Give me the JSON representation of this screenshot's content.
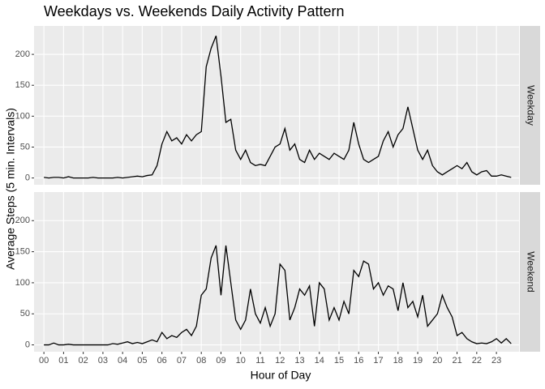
{
  "chart_data": {
    "type": "line",
    "title": "Weekdays vs. Weekends Daily Activity Pattern",
    "xlabel": "Hour of Day",
    "ylabel": "Average Steps (5 min. Intervals)",
    "x": [
      0,
      0.25,
      0.5,
      0.75,
      1,
      1.25,
      1.5,
      1.75,
      2,
      2.25,
      2.5,
      2.75,
      3,
      3.25,
      3.5,
      3.75,
      4,
      4.25,
      4.5,
      4.75,
      5,
      5.25,
      5.5,
      5.75,
      6,
      6.25,
      6.5,
      6.75,
      7,
      7.25,
      7.5,
      7.75,
      8,
      8.25,
      8.5,
      8.75,
      9,
      9.25,
      9.5,
      9.75,
      10,
      10.25,
      10.5,
      10.75,
      11,
      11.25,
      11.5,
      11.75,
      12,
      12.25,
      12.5,
      12.75,
      13,
      13.25,
      13.5,
      13.75,
      14,
      14.25,
      14.5,
      14.75,
      15,
      15.25,
      15.5,
      15.75,
      16,
      16.25,
      16.5,
      16.75,
      17,
      17.25,
      17.5,
      17.75,
      18,
      18.25,
      18.5,
      18.75,
      19,
      19.25,
      19.5,
      19.75,
      20,
      20.25,
      20.5,
      20.75,
      21,
      21.25,
      21.5,
      21.75,
      22,
      22.25,
      22.5,
      22.75,
      23,
      23.25,
      23.5,
      23.75
    ],
    "xlim": [
      -0.5,
      24.15
    ],
    "xticks": [
      {
        "value": 0,
        "label": "00"
      },
      {
        "value": 1,
        "label": "01"
      },
      {
        "value": 2,
        "label": "02"
      },
      {
        "value": 3,
        "label": "03"
      },
      {
        "value": 4,
        "label": "04"
      },
      {
        "value": 5,
        "label": "05"
      },
      {
        "value": 6,
        "label": "06"
      },
      {
        "value": 7,
        "label": "07"
      },
      {
        "value": 8,
        "label": "08"
      },
      {
        "value": 9,
        "label": "09"
      },
      {
        "value": 10,
        "label": "10"
      },
      {
        "value": 11,
        "label": "11"
      },
      {
        "value": 12,
        "label": "12"
      },
      {
        "value": 13,
        "label": "13"
      },
      {
        "value": 14,
        "label": "14"
      },
      {
        "value": 15,
        "label": "15"
      },
      {
        "value": 16,
        "label": "16"
      },
      {
        "value": 17,
        "label": "17"
      },
      {
        "value": 18,
        "label": "18"
      },
      {
        "value": 19,
        "label": "19"
      },
      {
        "value": 20,
        "label": "20"
      },
      {
        "value": 21,
        "label": "21"
      },
      {
        "value": 22,
        "label": "22"
      },
      {
        "value": 23,
        "label": "23"
      }
    ],
    "ylim": [
      -11,
      246
    ],
    "yticks": [
      0,
      50,
      100,
      150,
      200
    ],
    "grid": true,
    "series": [
      {
        "name": "Weekday",
        "color": "#000000",
        "values": [
          1,
          0,
          1,
          1,
          0,
          2,
          0,
          0,
          0,
          0,
          1,
          0,
          0,
          0,
          0,
          1,
          0,
          1,
          2,
          3,
          2,
          4,
          5,
          20,
          55,
          75,
          60,
          65,
          55,
          70,
          60,
          70,
          75,
          180,
          210,
          230,
          165,
          90,
          95,
          45,
          30,
          45,
          25,
          20,
          22,
          20,
          35,
          50,
          55,
          80,
          45,
          55,
          30,
          25,
          45,
          30,
          40,
          35,
          30,
          40,
          35,
          30,
          45,
          90,
          55,
          30,
          25,
          30,
          35,
          60,
          75,
          50,
          70,
          80,
          115,
          80,
          45,
          30,
          45,
          20,
          10,
          5,
          10,
          15,
          20,
          15,
          25,
          10,
          5,
          10,
          12,
          3,
          3,
          5,
          3,
          1
        ]
      },
      {
        "name": "Weekend",
        "color": "#000000",
        "values": [
          0,
          0,
          3,
          0,
          0,
          1,
          0,
          0,
          0,
          0,
          0,
          0,
          0,
          0,
          2,
          1,
          3,
          5,
          2,
          4,
          2,
          5,
          8,
          5,
          20,
          10,
          15,
          12,
          20,
          25,
          15,
          30,
          80,
          90,
          140,
          160,
          80,
          160,
          100,
          40,
          25,
          40,
          90,
          50,
          35,
          60,
          30,
          50,
          130,
          120,
          40,
          60,
          90,
          80,
          95,
          30,
          100,
          90,
          40,
          60,
          40,
          70,
          50,
          120,
          110,
          135,
          130,
          90,
          100,
          80,
          95,
          90,
          55,
          100,
          60,
          70,
          45,
          80,
          30,
          40,
          50,
          80,
          60,
          45,
          15,
          20,
          10,
          5,
          2,
          3,
          2,
          5,
          10,
          3,
          10,
          2
        ]
      }
    ]
  }
}
